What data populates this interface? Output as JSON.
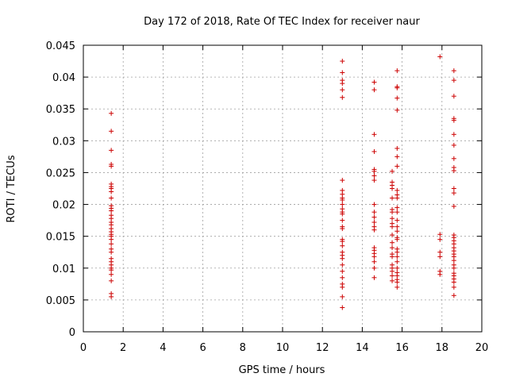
{
  "chart_data": {
    "type": "scatter",
    "title": "Day 172 of 2018, Rate Of TEC Index for receiver naur",
    "xlabel": "GPS time / hours",
    "ylabel": "ROTI / TECUs",
    "xlim": [
      0,
      20
    ],
    "ylim": [
      0,
      0.045
    ],
    "xticks": [
      0,
      2,
      4,
      6,
      8,
      10,
      12,
      14,
      16,
      18,
      20
    ],
    "yticks": [
      0,
      0.005,
      0.01,
      0.015,
      0.02,
      0.025,
      0.03,
      0.035,
      0.04,
      0.045
    ],
    "xtick_labels": [
      "0",
      "2",
      "4",
      "6",
      "8",
      "10",
      "12",
      "14",
      "16",
      "18",
      "20"
    ],
    "ytick_labels": [
      "0",
      "0.005",
      "0.01",
      "0.015",
      "0.02",
      "0.025",
      "0.03",
      "0.035",
      "0.04",
      "0.045"
    ],
    "grid": true,
    "marker": "+",
    "marker_color": "#cc0000",
    "series": [
      {
        "name": "ROTI",
        "points": [
          [
            1.4,
            0.0343
          ],
          [
            1.4,
            0.0315
          ],
          [
            1.4,
            0.0285
          ],
          [
            1.4,
            0.0263
          ],
          [
            1.4,
            0.026
          ],
          [
            1.4,
            0.0232
          ],
          [
            1.4,
            0.0228
          ],
          [
            1.4,
            0.0225
          ],
          [
            1.4,
            0.022
          ],
          [
            1.4,
            0.021
          ],
          [
            1.4,
            0.0198
          ],
          [
            1.4,
            0.0194
          ],
          [
            1.4,
            0.019
          ],
          [
            1.4,
            0.0183
          ],
          [
            1.4,
            0.0178
          ],
          [
            1.4,
            0.0172
          ],
          [
            1.4,
            0.0168
          ],
          [
            1.4,
            0.0162
          ],
          [
            1.4,
            0.0157
          ],
          [
            1.4,
            0.0153
          ],
          [
            1.4,
            0.015
          ],
          [
            1.4,
            0.0145
          ],
          [
            1.4,
            0.0138
          ],
          [
            1.4,
            0.013
          ],
          [
            1.4,
            0.0125
          ],
          [
            1.4,
            0.0115
          ],
          [
            1.4,
            0.011
          ],
          [
            1.4,
            0.0105
          ],
          [
            1.4,
            0.01
          ],
          [
            1.4,
            0.0097
          ],
          [
            1.4,
            0.009
          ],
          [
            1.4,
            0.008
          ],
          [
            1.4,
            0.006
          ],
          [
            1.4,
            0.0055
          ],
          [
            13.0,
            0.0425
          ],
          [
            13.0,
            0.0407
          ],
          [
            13.0,
            0.0395
          ],
          [
            13.0,
            0.039
          ],
          [
            13.0,
            0.038
          ],
          [
            13.0,
            0.0368
          ],
          [
            13.0,
            0.0238
          ],
          [
            13.0,
            0.0222
          ],
          [
            13.0,
            0.0216
          ],
          [
            13.0,
            0.021
          ],
          [
            13.0,
            0.0207
          ],
          [
            13.0,
            0.02
          ],
          [
            13.0,
            0.0193
          ],
          [
            13.0,
            0.0188
          ],
          [
            13.0,
            0.0185
          ],
          [
            13.0,
            0.0175
          ],
          [
            13.0,
            0.0165
          ],
          [
            13.0,
            0.0162
          ],
          [
            13.0,
            0.0145
          ],
          [
            13.0,
            0.0142
          ],
          [
            13.0,
            0.0135
          ],
          [
            13.0,
            0.0125
          ],
          [
            13.0,
            0.012
          ],
          [
            13.0,
            0.0115
          ],
          [
            13.0,
            0.0105
          ],
          [
            13.0,
            0.0095
          ],
          [
            13.0,
            0.0085
          ],
          [
            13.0,
            0.0075
          ],
          [
            13.0,
            0.007
          ],
          [
            13.0,
            0.0055
          ],
          [
            13.0,
            0.0038
          ],
          [
            14.6,
            0.0392
          ],
          [
            14.6,
            0.038
          ],
          [
            14.6,
            0.031
          ],
          [
            14.6,
            0.0283
          ],
          [
            14.6,
            0.0255
          ],
          [
            14.6,
            0.0252
          ],
          [
            14.6,
            0.0245
          ],
          [
            14.6,
            0.0238
          ],
          [
            14.6,
            0.02
          ],
          [
            14.6,
            0.0188
          ],
          [
            14.6,
            0.018
          ],
          [
            14.6,
            0.0172
          ],
          [
            14.6,
            0.0165
          ],
          [
            14.6,
            0.016
          ],
          [
            14.6,
            0.0132
          ],
          [
            14.6,
            0.0128
          ],
          [
            14.6,
            0.0123
          ],
          [
            14.6,
            0.0118
          ],
          [
            14.6,
            0.011
          ],
          [
            14.6,
            0.01
          ],
          [
            14.6,
            0.0085
          ],
          [
            15.5,
            0.0252
          ],
          [
            15.5,
            0.0235
          ],
          [
            15.5,
            0.023
          ],
          [
            15.5,
            0.0225
          ],
          [
            15.5,
            0.021
          ],
          [
            15.5,
            0.0192
          ],
          [
            15.5,
            0.0188
          ],
          [
            15.5,
            0.0178
          ],
          [
            15.5,
            0.017
          ],
          [
            15.5,
            0.0165
          ],
          [
            15.5,
            0.0152
          ],
          [
            15.5,
            0.014
          ],
          [
            15.5,
            0.0132
          ],
          [
            15.5,
            0.0122
          ],
          [
            15.5,
            0.0118
          ],
          [
            15.5,
            0.0105
          ],
          [
            15.5,
            0.01
          ],
          [
            15.5,
            0.0095
          ],
          [
            15.5,
            0.0088
          ],
          [
            15.5,
            0.008
          ],
          [
            15.75,
            0.041
          ],
          [
            15.75,
            0.0385
          ],
          [
            15.75,
            0.0383
          ],
          [
            15.75,
            0.0367
          ],
          [
            15.75,
            0.0348
          ],
          [
            15.75,
            0.0288
          ],
          [
            15.75,
            0.0275
          ],
          [
            15.75,
            0.026
          ],
          [
            15.75,
            0.0222
          ],
          [
            15.75,
            0.0215
          ],
          [
            15.75,
            0.021
          ],
          [
            15.75,
            0.0195
          ],
          [
            15.75,
            0.0188
          ],
          [
            15.75,
            0.0175
          ],
          [
            15.75,
            0.0165
          ],
          [
            15.75,
            0.0158
          ],
          [
            15.75,
            0.0148
          ],
          [
            15.75,
            0.0145
          ],
          [
            15.75,
            0.013
          ],
          [
            15.75,
            0.0125
          ],
          [
            15.75,
            0.0118
          ],
          [
            15.75,
            0.011
          ],
          [
            15.75,
            0.01
          ],
          [
            15.75,
            0.0093
          ],
          [
            15.75,
            0.0088
          ],
          [
            15.75,
            0.0082
          ],
          [
            15.75,
            0.0078
          ],
          [
            15.75,
            0.007
          ],
          [
            17.9,
            0.0432
          ],
          [
            17.9,
            0.0153
          ],
          [
            17.9,
            0.0145
          ],
          [
            17.9,
            0.0125
          ],
          [
            17.9,
            0.0118
          ],
          [
            17.9,
            0.0095
          ],
          [
            17.9,
            0.009
          ],
          [
            18.6,
            0.041
          ],
          [
            18.6,
            0.0395
          ],
          [
            18.6,
            0.037
          ],
          [
            18.6,
            0.0335
          ],
          [
            18.6,
            0.0332
          ],
          [
            18.6,
            0.031
          ],
          [
            18.6,
            0.0293
          ],
          [
            18.6,
            0.0272
          ],
          [
            18.6,
            0.0258
          ],
          [
            18.6,
            0.0253
          ],
          [
            18.6,
            0.0225
          ],
          [
            18.6,
            0.0218
          ],
          [
            18.6,
            0.0197
          ],
          [
            18.6,
            0.0152
          ],
          [
            18.6,
            0.0148
          ],
          [
            18.6,
            0.0143
          ],
          [
            18.6,
            0.0138
          ],
          [
            18.6,
            0.0132
          ],
          [
            18.6,
            0.0127
          ],
          [
            18.6,
            0.0122
          ],
          [
            18.6,
            0.0118
          ],
          [
            18.6,
            0.0112
          ],
          [
            18.6,
            0.0105
          ],
          [
            18.6,
            0.01
          ],
          [
            18.6,
            0.0092
          ],
          [
            18.6,
            0.0088
          ],
          [
            18.6,
            0.0083
          ],
          [
            18.6,
            0.0078
          ],
          [
            18.6,
            0.007
          ],
          [
            18.6,
            0.0057
          ]
        ]
      }
    ]
  }
}
